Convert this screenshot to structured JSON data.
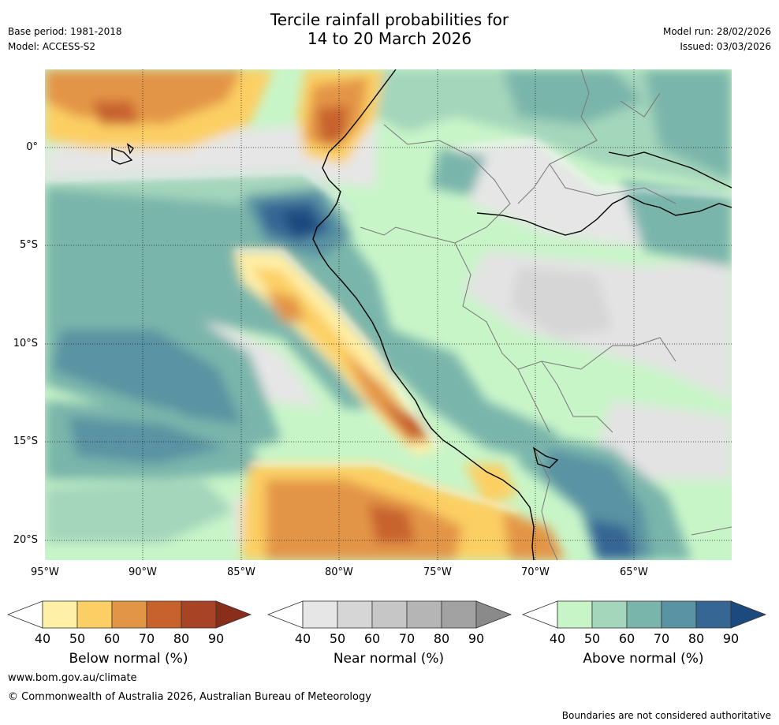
{
  "title": {
    "line1": "Tercile rainfall probabilities for",
    "line2": "14 to 20 March 2026"
  },
  "meta": {
    "base_period": "Base period: 1981-2018",
    "model": "Model: ACCESS-S2",
    "model_run": "Model run: 28/02/2026",
    "issued": "Issued: 03/03/2026"
  },
  "map": {
    "lon_labels": [
      "95°W",
      "90°W",
      "85°W",
      "80°W",
      "75°W",
      "70°W",
      "65°W"
    ],
    "lat_labels": [
      "0°",
      "5°S",
      "10°S",
      "15°S",
      "20°S"
    ]
  },
  "colorbars": [
    {
      "label": "Below normal (%)",
      "ticks": [
        "40",
        "50",
        "60",
        "70",
        "80",
        "90"
      ],
      "colors": [
        "#fff0a8",
        "#fccf64",
        "#e39547",
        "#c8622d",
        "#a84425",
        "#8a2e1c"
      ]
    },
    {
      "label": "Near normal (%)",
      "ticks": [
        "40",
        "50",
        "60",
        "70",
        "80",
        "90"
      ],
      "colors": [
        "#e6e6e6",
        "#d6d6d6",
        "#c6c6c6",
        "#b5b5b5",
        "#a2a2a2",
        "#8a8a8a"
      ]
    },
    {
      "label": "Above normal (%)",
      "ticks": [
        "40",
        "50",
        "60",
        "70",
        "80",
        "90"
      ],
      "colors": [
        "#c8f5c8",
        "#a4d6bc",
        "#7ab5ab",
        "#5a93a3",
        "#356694",
        "#1c4a7e"
      ]
    }
  ],
  "footer": {
    "website": "www.bom.gov.au/climate",
    "copyright": "© Commonwealth of Australia 2026, Australian Bureau of Meteorology",
    "disclaimer": "Boundaries are not considered authoritative"
  }
}
